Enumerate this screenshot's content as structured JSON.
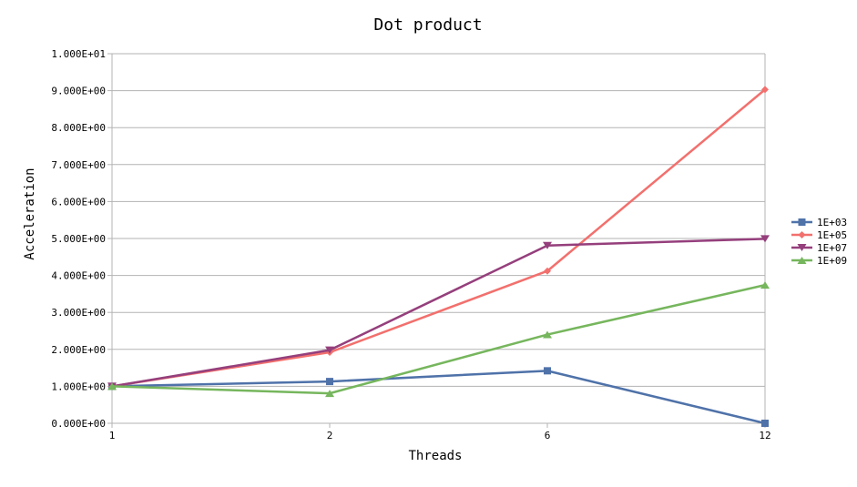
{
  "chart_data": {
    "type": "line",
    "title": "Dot product",
    "xlabel": "Threads",
    "ylabel": "Acceleration",
    "categories": [
      "1",
      "2",
      "6",
      "12"
    ],
    "ylim": [
      0,
      10
    ],
    "yticks": [
      "0.000E+00",
      "1.000E+00",
      "2.000E+00",
      "3.000E+00",
      "4.000E+00",
      "5.000E+00",
      "6.000E+00",
      "7.000E+00",
      "8.000E+00",
      "9.000E+00",
      "1.000E+01"
    ],
    "grid": true,
    "legend_position": "right",
    "series": [
      {
        "name": "1E+03",
        "values": [
          1.0,
          1.13,
          1.42,
          0.0
        ],
        "color": "#4f72a9",
        "marker": "square"
      },
      {
        "name": "1E+05",
        "values": [
          1.0,
          1.92,
          4.12,
          9.03
        ],
        "color": "#f2706d",
        "marker": "diamond"
      },
      {
        "name": "1E+07",
        "values": [
          1.0,
          1.98,
          4.81,
          4.99
        ],
        "color": "#953f7c",
        "marker": "triangle-down"
      },
      {
        "name": "1E+09",
        "values": [
          1.0,
          0.81,
          2.4,
          3.74
        ],
        "color": "#76b65d",
        "marker": "triangle-up"
      }
    ]
  }
}
